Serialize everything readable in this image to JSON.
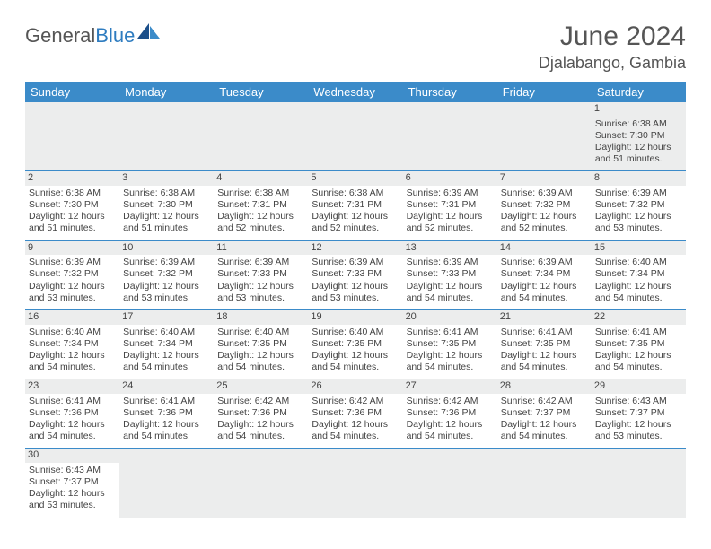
{
  "logo": {
    "part1": "General",
    "part2": "Blue"
  },
  "title": "June 2024",
  "location": "Djalabango, Gambia",
  "colors": {
    "header_bg": "#3b8bc9",
    "header_text": "#ffffff",
    "daynum_bg": "#eceded",
    "rule": "#3b8bc9",
    "text": "#444444",
    "logo_blue": "#2e7cc0"
  },
  "day_headers": [
    "Sunday",
    "Monday",
    "Tuesday",
    "Wednesday",
    "Thursday",
    "Friday",
    "Saturday"
  ],
  "weeks": [
    [
      null,
      null,
      null,
      null,
      null,
      null,
      {
        "n": "1",
        "sr": "Sunrise: 6:38 AM",
        "ss": "Sunset: 7:30 PM",
        "dl1": "Daylight: 12 hours",
        "dl2": "and 51 minutes."
      }
    ],
    [
      {
        "n": "2",
        "sr": "Sunrise: 6:38 AM",
        "ss": "Sunset: 7:30 PM",
        "dl1": "Daylight: 12 hours",
        "dl2": "and 51 minutes."
      },
      {
        "n": "3",
        "sr": "Sunrise: 6:38 AM",
        "ss": "Sunset: 7:30 PM",
        "dl1": "Daylight: 12 hours",
        "dl2": "and 51 minutes."
      },
      {
        "n": "4",
        "sr": "Sunrise: 6:38 AM",
        "ss": "Sunset: 7:31 PM",
        "dl1": "Daylight: 12 hours",
        "dl2": "and 52 minutes."
      },
      {
        "n": "5",
        "sr": "Sunrise: 6:38 AM",
        "ss": "Sunset: 7:31 PM",
        "dl1": "Daylight: 12 hours",
        "dl2": "and 52 minutes."
      },
      {
        "n": "6",
        "sr": "Sunrise: 6:39 AM",
        "ss": "Sunset: 7:31 PM",
        "dl1": "Daylight: 12 hours",
        "dl2": "and 52 minutes."
      },
      {
        "n": "7",
        "sr": "Sunrise: 6:39 AM",
        "ss": "Sunset: 7:32 PM",
        "dl1": "Daylight: 12 hours",
        "dl2": "and 52 minutes."
      },
      {
        "n": "8",
        "sr": "Sunrise: 6:39 AM",
        "ss": "Sunset: 7:32 PM",
        "dl1": "Daylight: 12 hours",
        "dl2": "and 53 minutes."
      }
    ],
    [
      {
        "n": "9",
        "sr": "Sunrise: 6:39 AM",
        "ss": "Sunset: 7:32 PM",
        "dl1": "Daylight: 12 hours",
        "dl2": "and 53 minutes."
      },
      {
        "n": "10",
        "sr": "Sunrise: 6:39 AM",
        "ss": "Sunset: 7:32 PM",
        "dl1": "Daylight: 12 hours",
        "dl2": "and 53 minutes."
      },
      {
        "n": "11",
        "sr": "Sunrise: 6:39 AM",
        "ss": "Sunset: 7:33 PM",
        "dl1": "Daylight: 12 hours",
        "dl2": "and 53 minutes."
      },
      {
        "n": "12",
        "sr": "Sunrise: 6:39 AM",
        "ss": "Sunset: 7:33 PM",
        "dl1": "Daylight: 12 hours",
        "dl2": "and 53 minutes."
      },
      {
        "n": "13",
        "sr": "Sunrise: 6:39 AM",
        "ss": "Sunset: 7:33 PM",
        "dl1": "Daylight: 12 hours",
        "dl2": "and 54 minutes."
      },
      {
        "n": "14",
        "sr": "Sunrise: 6:39 AM",
        "ss": "Sunset: 7:34 PM",
        "dl1": "Daylight: 12 hours",
        "dl2": "and 54 minutes."
      },
      {
        "n": "15",
        "sr": "Sunrise: 6:40 AM",
        "ss": "Sunset: 7:34 PM",
        "dl1": "Daylight: 12 hours",
        "dl2": "and 54 minutes."
      }
    ],
    [
      {
        "n": "16",
        "sr": "Sunrise: 6:40 AM",
        "ss": "Sunset: 7:34 PM",
        "dl1": "Daylight: 12 hours",
        "dl2": "and 54 minutes."
      },
      {
        "n": "17",
        "sr": "Sunrise: 6:40 AM",
        "ss": "Sunset: 7:34 PM",
        "dl1": "Daylight: 12 hours",
        "dl2": "and 54 minutes."
      },
      {
        "n": "18",
        "sr": "Sunrise: 6:40 AM",
        "ss": "Sunset: 7:35 PM",
        "dl1": "Daylight: 12 hours",
        "dl2": "and 54 minutes."
      },
      {
        "n": "19",
        "sr": "Sunrise: 6:40 AM",
        "ss": "Sunset: 7:35 PM",
        "dl1": "Daylight: 12 hours",
        "dl2": "and 54 minutes."
      },
      {
        "n": "20",
        "sr": "Sunrise: 6:41 AM",
        "ss": "Sunset: 7:35 PM",
        "dl1": "Daylight: 12 hours",
        "dl2": "and 54 minutes."
      },
      {
        "n": "21",
        "sr": "Sunrise: 6:41 AM",
        "ss": "Sunset: 7:35 PM",
        "dl1": "Daylight: 12 hours",
        "dl2": "and 54 minutes."
      },
      {
        "n": "22",
        "sr": "Sunrise: 6:41 AM",
        "ss": "Sunset: 7:35 PM",
        "dl1": "Daylight: 12 hours",
        "dl2": "and 54 minutes."
      }
    ],
    [
      {
        "n": "23",
        "sr": "Sunrise: 6:41 AM",
        "ss": "Sunset: 7:36 PM",
        "dl1": "Daylight: 12 hours",
        "dl2": "and 54 minutes."
      },
      {
        "n": "24",
        "sr": "Sunrise: 6:41 AM",
        "ss": "Sunset: 7:36 PM",
        "dl1": "Daylight: 12 hours",
        "dl2": "and 54 minutes."
      },
      {
        "n": "25",
        "sr": "Sunrise: 6:42 AM",
        "ss": "Sunset: 7:36 PM",
        "dl1": "Daylight: 12 hours",
        "dl2": "and 54 minutes."
      },
      {
        "n": "26",
        "sr": "Sunrise: 6:42 AM",
        "ss": "Sunset: 7:36 PM",
        "dl1": "Daylight: 12 hours",
        "dl2": "and 54 minutes."
      },
      {
        "n": "27",
        "sr": "Sunrise: 6:42 AM",
        "ss": "Sunset: 7:36 PM",
        "dl1": "Daylight: 12 hours",
        "dl2": "and 54 minutes."
      },
      {
        "n": "28",
        "sr": "Sunrise: 6:42 AM",
        "ss": "Sunset: 7:37 PM",
        "dl1": "Daylight: 12 hours",
        "dl2": "and 54 minutes."
      },
      {
        "n": "29",
        "sr": "Sunrise: 6:43 AM",
        "ss": "Sunset: 7:37 PM",
        "dl1": "Daylight: 12 hours",
        "dl2": "and 53 minutes."
      }
    ],
    [
      {
        "n": "30",
        "sr": "Sunrise: 6:43 AM",
        "ss": "Sunset: 7:37 PM",
        "dl1": "Daylight: 12 hours",
        "dl2": "and 53 minutes."
      },
      null,
      null,
      null,
      null,
      null,
      null
    ]
  ]
}
